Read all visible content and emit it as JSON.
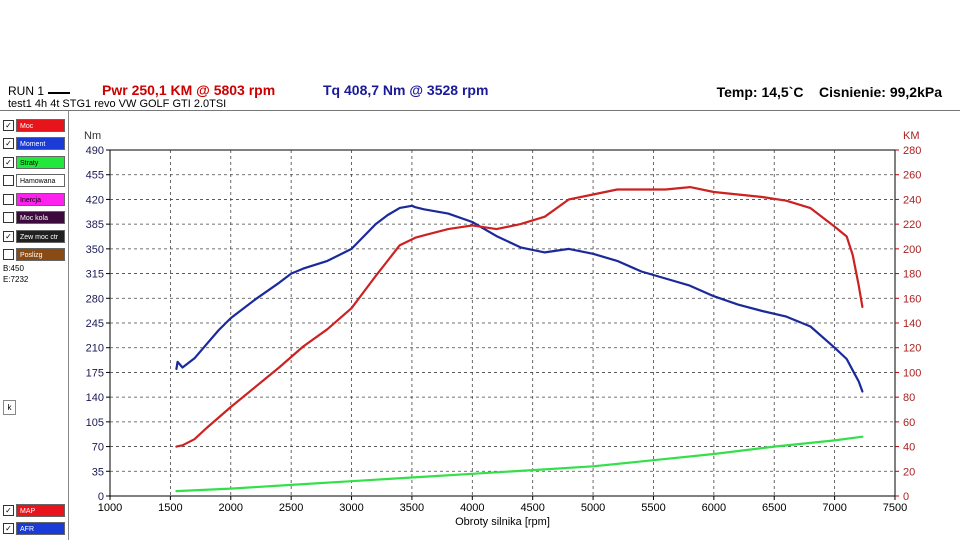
{
  "header": {
    "run_label": "RUN 1",
    "power": "Pwr  250,1 KM @ 5803 rpm",
    "torque": "Tq 408,7 Nm @ 3528 rpm",
    "temperature": "Temp: 14,5`C",
    "pressure": "Cisnienie: 99,2kPa",
    "subtitle": "test1  4h 4t STG1 revo VW GOLF GTI 2.0TSI"
  },
  "legend": [
    {
      "label": "Moc",
      "checked": true,
      "color": "#e8141b"
    },
    {
      "label": "Moment",
      "checked": true,
      "color": "#1b3bd6"
    },
    {
      "label": "Straty",
      "checked": true,
      "color": "#22e83c"
    },
    {
      "label": "Hamowana",
      "checked": false,
      "color": "#ffffff"
    },
    {
      "label": "Inercja",
      "checked": false,
      "color": "#ff22ee"
    },
    {
      "label": "Moc kola",
      "checked": false,
      "color": "#3c0a3c"
    },
    {
      "label": "Zew moc ctr",
      "checked": true,
      "color": "#202020"
    },
    {
      "label": "Poslizg",
      "checked": false,
      "color": "#8a4a14"
    }
  ],
  "legend_bottom": [
    {
      "label": "MAP",
      "checked": true,
      "color": "#e8141b"
    },
    {
      "label": "AFR",
      "checked": true,
      "color": "#1b3bd6"
    }
  ],
  "meta": {
    "b": "B:450",
    "e": "E:7232",
    "k_button": "k"
  },
  "chart_data": {
    "type": "line",
    "xlabel": "Obroty silnika [rpm]",
    "ylabel_left": "Nm",
    "ylabel_right": "KM",
    "xlim": [
      1000,
      7500
    ],
    "ylim_left": [
      0,
      490
    ],
    "ylim_right": [
      0,
      280
    ],
    "x_ticks": [
      1000,
      1500,
      2000,
      2500,
      3000,
      3500,
      4000,
      4500,
      5000,
      5500,
      6000,
      6500,
      7000,
      7500
    ],
    "y_left_ticks": [
      0,
      35,
      70,
      105,
      140,
      175,
      210,
      245,
      280,
      315,
      350,
      385,
      420,
      455,
      490
    ],
    "y_right_ticks": [
      0,
      20,
      40,
      60,
      80,
      100,
      120,
      140,
      160,
      180,
      200,
      220,
      240,
      260,
      280
    ],
    "grid": true,
    "series": [
      {
        "name": "Moment",
        "axis": "left",
        "color": "#1a2a9a",
        "x": [
          1550,
          1560,
          1600,
          1700,
          1800,
          1900,
          2000,
          2200,
          2400,
          2500,
          2600,
          2800,
          3000,
          3200,
          3300,
          3400,
          3500,
          3528,
          3600,
          3800,
          4000,
          4200,
          4400,
          4600,
          4800,
          5000,
          5200,
          5400,
          5600,
          5800,
          6000,
          6200,
          6400,
          6600,
          6800,
          7000,
          7100,
          7150,
          7200,
          7230
        ],
        "y": [
          180,
          190,
          182,
          195,
          215,
          235,
          252,
          278,
          302,
          315,
          322,
          333,
          350,
          385,
          398,
          408,
          411,
          409,
          406,
          400,
          388,
          368,
          352,
          345,
          350,
          343,
          333,
          318,
          308,
          298,
          283,
          271,
          262,
          254,
          240,
          210,
          194,
          178,
          162,
          148
        ]
      },
      {
        "name": "Moc",
        "axis": "right",
        "color": "#cc2222",
        "x": [
          1550,
          1600,
          1700,
          1800,
          2000,
          2200,
          2400,
          2600,
          2800,
          3000,
          3200,
          3400,
          3528,
          3600,
          3800,
          4000,
          4200,
          4400,
          4600,
          4800,
          5000,
          5200,
          5400,
          5600,
          5803,
          6000,
          6200,
          6400,
          6600,
          6800,
          7000,
          7100,
          7150,
          7200,
          7230
        ],
        "y": [
          40,
          41,
          46,
          55,
          72,
          88,
          104,
          121,
          135,
          152,
          178,
          203,
          209,
          211,
          216,
          219,
          216,
          220,
          226,
          240,
          244,
          248,
          248,
          248,
          250,
          246,
          244,
          242,
          239,
          233,
          218,
          210,
          195,
          170,
          153
        ]
      },
      {
        "name": "Straty",
        "axis": "right",
        "color": "#33e04a",
        "x": [
          1550,
          2000,
          2500,
          3000,
          3500,
          4000,
          4500,
          5000,
          5500,
          6000,
          6500,
          7000,
          7230
        ],
        "y": [
          4,
          6,
          9,
          12,
          15,
          18,
          21,
          24,
          29,
          34,
          40,
          45,
          48
        ]
      }
    ]
  }
}
